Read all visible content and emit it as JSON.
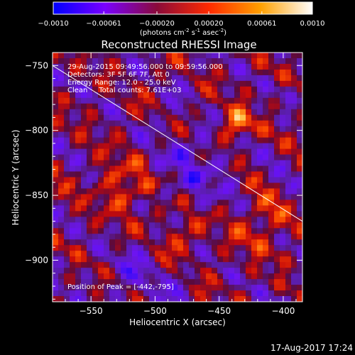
{
  "chart_data": {
    "type": "heatmap",
    "title": "Reconstructed RHESSI Image",
    "colorbar": {
      "ticks": [
        "-0.0010",
        "-0.00061",
        "-0.00020",
        "0.00020",
        "0.00061",
        "0.0010"
      ],
      "range": [
        -0.001,
        0.001
      ],
      "unit_main": "(photons cm",
      "unit_exp1": "-2",
      "unit_mid": " s",
      "unit_exp2": "-1",
      "unit_tail": " asec",
      "unit_exp3": "-2",
      "unit_close": ")",
      "colors": [
        "#0000ff",
        "#7a00ff",
        "#8a0a3a",
        "#ff2a00",
        "#ffa000",
        "#ffffff"
      ]
    },
    "xlabel": "Heliocentric X (arcsec)",
    "ylabel": "Heliocentric Y (arcsec)",
    "xlim": [
      -580,
      -385
    ],
    "ylim": [
      -932,
      -740
    ],
    "xticks": [
      -550,
      -500,
      -450,
      -400
    ],
    "xtick_labels": [
      "−550",
      "−500",
      "−450",
      "−400"
    ],
    "yticks": [
      -750,
      -800,
      -850,
      -900
    ],
    "ytick_labels": [
      "−750",
      "−800",
      "−850",
      "−900"
    ],
    "annotations": [
      "29-Aug-2015 09:49:56.000 to 09:59:56.000",
      "Detectors: 3F 5F 6F 7F, Att 0",
      "Energy Range: 12.0 - 25.0 keV",
      "Clean     Total counts: 7.61E+03"
    ],
    "peak_label": "Position of Peak = [-442,-795]",
    "peak": [
      -442,
      -795
    ],
    "limb_line": [
      [
        -580,
        -750
      ],
      [
        -385,
        -870
      ]
    ],
    "grid": false,
    "colorscale": "RHESSI diverging (blue-purple-red-yellow-white)"
  },
  "footer": {
    "timestamp": "17-Aug-2017 17:24"
  }
}
